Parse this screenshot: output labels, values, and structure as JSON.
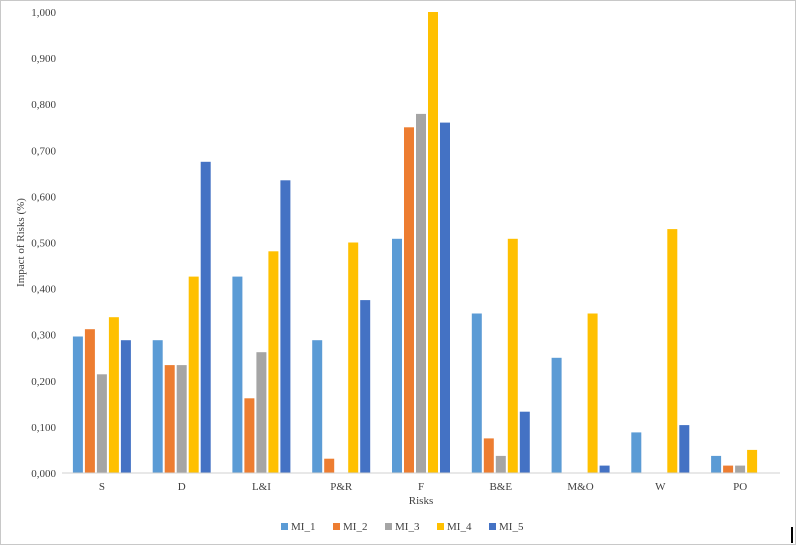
{
  "chart_data": {
    "type": "bar",
    "xlabel": "Risks",
    "ylabel": "Impact of Risks (%)",
    "ylim": [
      0,
      1.0
    ],
    "ytick_step": 0.1,
    "ytick_labels": [
      "0,000",
      "0,100",
      "0,200",
      "0,300",
      "0,400",
      "0,500",
      "0,600",
      "0,700",
      "0,800",
      "0,900",
      "1,000"
    ],
    "grid": false,
    "legend_position": "bottom",
    "categories": [
      "S",
      "D",
      "L&I",
      "P&R",
      "F",
      "B&E",
      "M&O",
      "W",
      "PO"
    ],
    "series": [
      {
        "name": "MI_1",
        "color": "#5B9BD5",
        "values": [
          0.296,
          0.288,
          0.426,
          0.288,
          0.508,
          0.346,
          0.25,
          0.088,
          0.037
        ]
      },
      {
        "name": "MI_2",
        "color": "#ED7D31",
        "values": [
          0.312,
          0.234,
          0.162,
          0.031,
          0.75,
          0.075,
          0.0,
          0.0,
          0.016
        ]
      },
      {
        "name": "MI_3",
        "color": "#A5A5A5",
        "values": [
          0.214,
          0.234,
          0.262,
          0.0,
          0.779,
          0.037,
          0.0,
          0.0,
          0.016
        ]
      },
      {
        "name": "MI_4",
        "color": "#FFC000",
        "values": [
          0.338,
          0.426,
          0.481,
          0.5,
          1.0,
          0.508,
          0.346,
          0.529,
          0.05
        ]
      },
      {
        "name": "MI_5",
        "color": "#4472C4",
        "values": [
          0.288,
          0.675,
          0.635,
          0.375,
          0.76,
          0.133,
          0.016,
          0.104,
          0.0
        ]
      }
    ]
  }
}
